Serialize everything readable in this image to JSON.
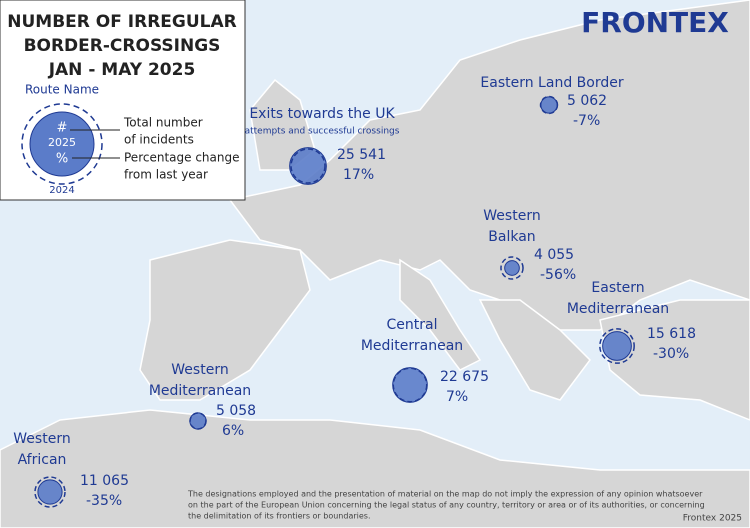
{
  "legend": {
    "title": [
      "NUMBER OF IRREGULAR",
      "BORDER-CROSSINGS",
      "JAN - MAY 2025"
    ],
    "route_name": "Route Name",
    "symbol_count": "#",
    "symbol_year": "2025",
    "symbol_change": "%",
    "symbol_prev_year": "2024",
    "count_text": [
      "Total number",
      "of incidents"
    ],
    "change_text": [
      "Percentage change",
      "from last year"
    ]
  },
  "logo": "FRONTEX",
  "routes": [
    {
      "name": [
        "Eastern Land Border"
      ],
      "incidents": 5062,
      "incidents_label": "5 062",
      "change": -7,
      "change_label": "-7%"
    },
    {
      "name": [
        "Exits towards the UK"
      ],
      "note": "attempts and successful crossings",
      "incidents": 25541,
      "incidents_label": "25 541",
      "change": 17,
      "change_label": "17%"
    },
    {
      "name": [
        "Western",
        "Balkan"
      ],
      "incidents": 4055,
      "incidents_label": "4 055",
      "change": -56,
      "change_label": "-56%"
    },
    {
      "name": [
        "Eastern",
        "Mediterranean"
      ],
      "incidents": 15618,
      "incidents_label": "15 618",
      "change": -30,
      "change_label": "-30%"
    },
    {
      "name": [
        "Central",
        "Mediterranean"
      ],
      "incidents": 22675,
      "incidents_label": "22 675",
      "change": 7,
      "change_label": "7%"
    },
    {
      "name": [
        "Western",
        "Mediterranean"
      ],
      "incidents": 5058,
      "incidents_label": "5 058",
      "change": 6,
      "change_label": "6%"
    },
    {
      "name": [
        "Western",
        "African"
      ],
      "incidents": 11065,
      "incidents_label": "11 065",
      "change": -35,
      "change_label": "-35%"
    }
  ],
  "disclaimer": [
    "The designations employed and the presentation of material on the map do not imply the expression of any opinion whatsoever",
    "on the part of the European Union concerning the legal status of any country, territory or area or of its authorities, or concerning",
    "the delimitation of its frontiers or boundaries."
  ],
  "credit": "Frontex 2025"
}
